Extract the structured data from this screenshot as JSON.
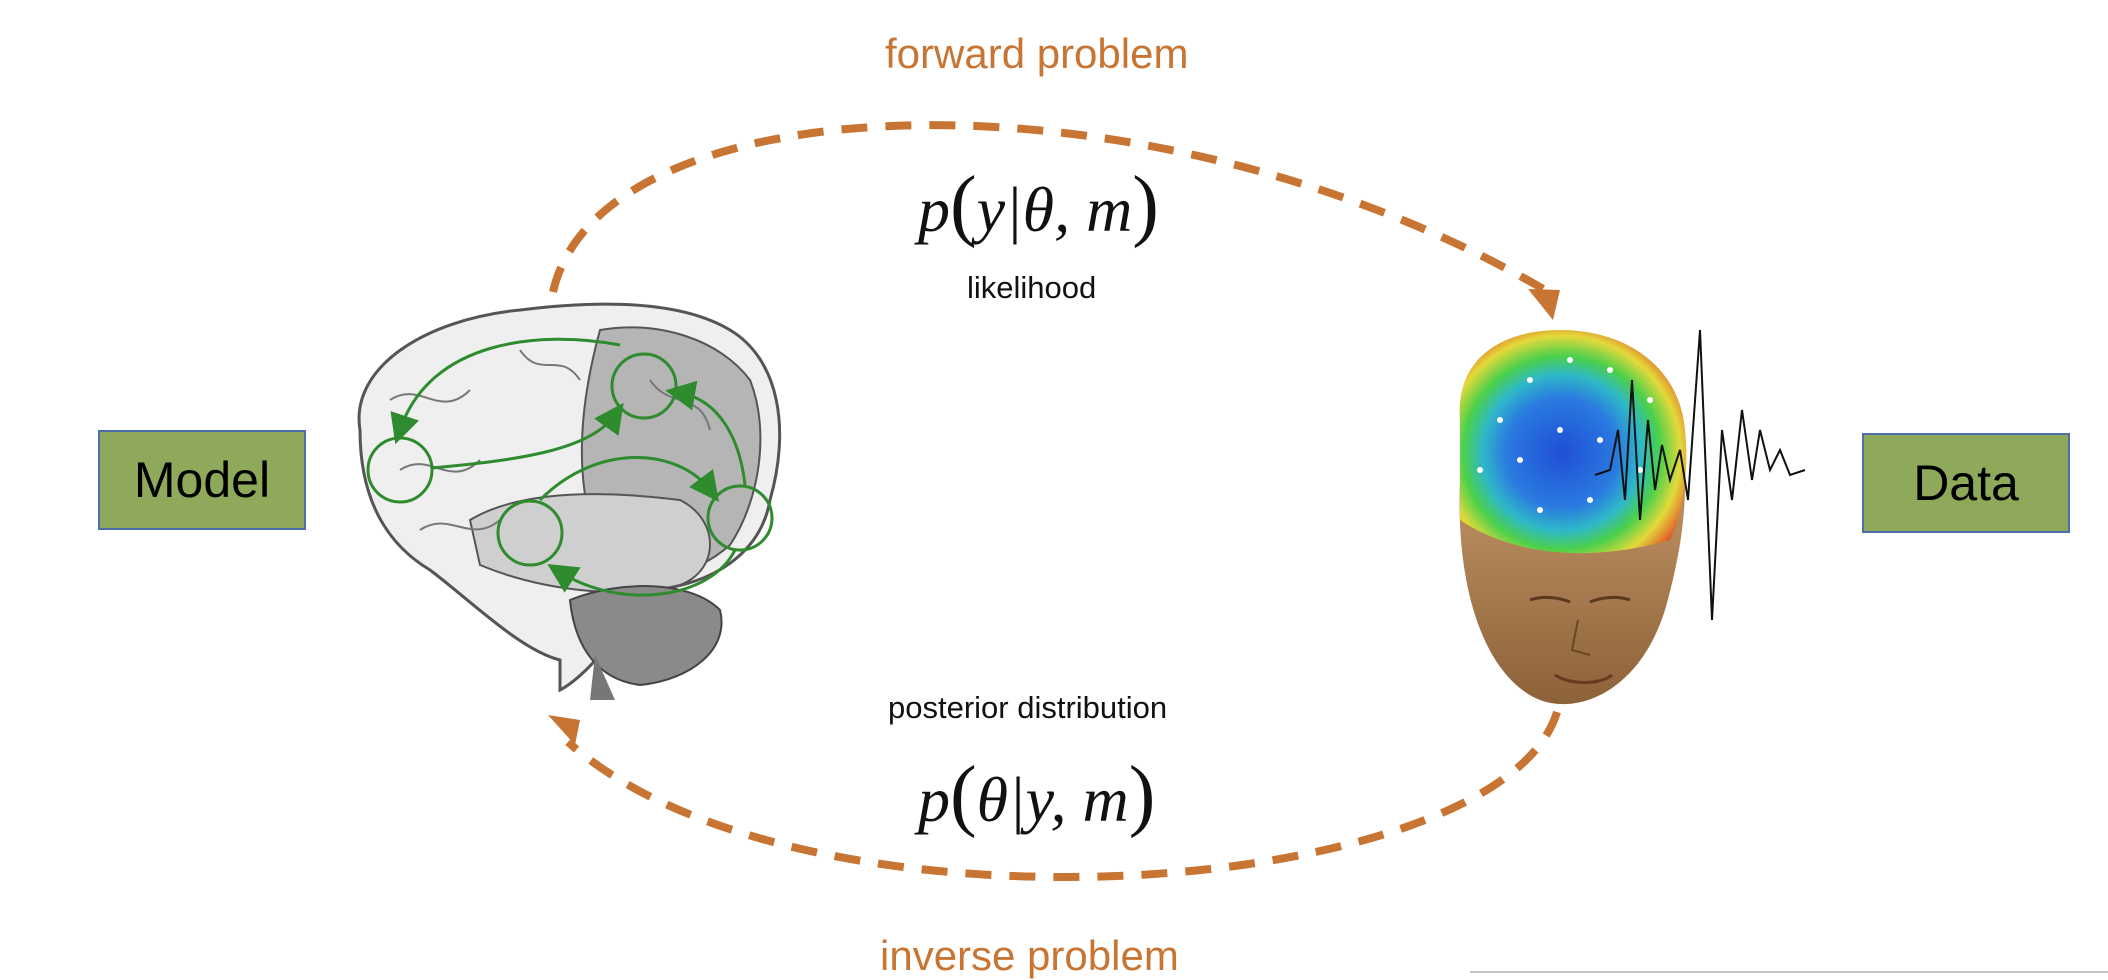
{
  "labels": {
    "forward": "forward problem",
    "inverse": "inverse problem",
    "likelihood": "likelihood",
    "posterior": "posterior distribution",
    "model": "Model",
    "data": "Data"
  },
  "formulas": {
    "likelihood_p": "p",
    "likelihood_inner": "y|θ, m",
    "posterior_p": "p",
    "posterior_inner": "θ|y, m"
  },
  "colors": {
    "arrow": "#c87533",
    "box_fill": "#8fa95a",
    "box_border": "#4d6fa8",
    "network": "#2e8b2e"
  },
  "icons": [
    "brain-icon",
    "eeg-head-icon",
    "waveform-icon"
  ]
}
